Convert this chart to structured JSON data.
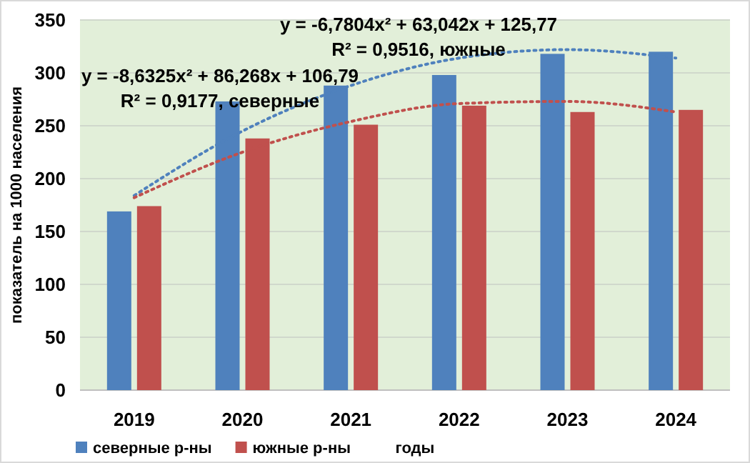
{
  "chart_data": {
    "type": "bar",
    "ylabel": "показатель на 1000 населения",
    "xlabel": "годы",
    "categories": [
      "2019",
      "2020",
      "2021",
      "2022",
      "2023",
      "2024"
    ],
    "series": [
      {
        "name": "северные р-ны",
        "color": "#4f81bd",
        "values": [
          169,
          273,
          288,
          298,
          318,
          320
        ]
      },
      {
        "name": "южные р-ны",
        "color": "#c0504d",
        "values": [
          174,
          238,
          251,
          269,
          263,
          265
        ]
      },
      {
        "type": "line",
        "color": "#4f81bd",
        "line_style": "dotted",
        "values": [
          184,
          245,
          288,
          314,
          322,
          314
        ]
      },
      {
        "type": "line",
        "color": "#c0504d",
        "line_style": "dotted",
        "values": [
          182,
          225,
          254,
          271,
          273,
          263
        ]
      }
    ],
    "annotations": [
      "y = -6,7804x² + 63,042x + 125,77\nR² = 0,9516, южные",
      "y = -8,6325x² + 86,268x + 106,79\nR² = 0,9177, северные"
    ],
    "ylim": [
      0,
      350
    ],
    "yticks": [
      0,
      50,
      100,
      150,
      200,
      250,
      300,
      350
    ],
    "grid": "y",
    "legend": "bottom"
  }
}
